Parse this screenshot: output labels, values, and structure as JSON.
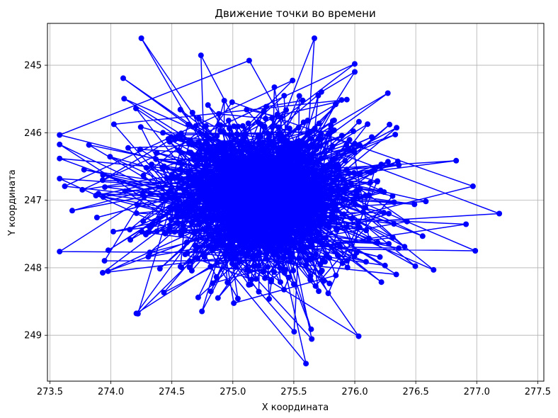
{
  "chart_data": {
    "type": "line",
    "title": "Движение точки во времени",
    "xlabel": "X координата",
    "ylabel": "Y координата",
    "xlim": [
      273.48,
      277.55
    ],
    "ylim": [
      249.68,
      244.38
    ],
    "y_inverted": true,
    "grid": true,
    "marker": "circle",
    "line_color": "#0000ff",
    "x_ticks": [
      "273.5",
      "274.0",
      "274.5",
      "275.0",
      "275.5",
      "276.0",
      "276.5",
      "277.0",
      "277.5"
    ],
    "y_ticks": [
      "245",
      "246",
      "247",
      "248",
      "249"
    ],
    "series": [
      {
        "center": [
          275.25,
          246.95
        ],
        "x_range": [
          273.58,
          277.37
        ],
        "y_range": [
          244.6,
          249.42
        ],
        "point_count": 1500,
        "x": [],
        "y": []
      }
    ]
  }
}
